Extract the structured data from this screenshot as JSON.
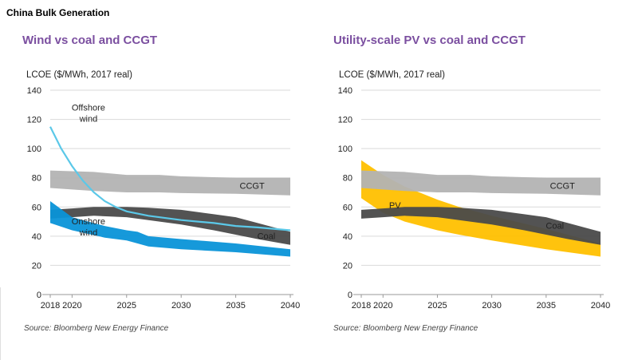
{
  "page_title": "China Bulk Generation",
  "chart_data": [
    {
      "type": "area",
      "title": "Wind vs coal and CCGT",
      "ylabel": "LCOE ($/MWh, 2017 real)",
      "source": "Source: Bloomberg New Energy Finance",
      "ylim": [
        0,
        140
      ],
      "yticks": [
        0,
        20,
        40,
        60,
        80,
        100,
        120,
        140
      ],
      "xlim": [
        2018,
        2040
      ],
      "xticks": [
        2018,
        2020,
        2025,
        2030,
        2035,
        2040
      ],
      "grid": true,
      "colors": {
        "ccgt": "#b3b3b3",
        "coal": "#4a4a4a",
        "onshore": "#0a93d8",
        "offshore": "#5bc8e8"
      },
      "bands": [
        {
          "name": "CCGT",
          "color": "#b3b3b3",
          "x": [
            2018,
            2022,
            2025,
            2028,
            2030,
            2035,
            2040
          ],
          "upper": [
            85,
            84,
            82,
            82,
            81,
            80,
            80
          ],
          "lower": [
            73,
            71,
            70,
            70,
            69.5,
            69,
            68
          ]
        },
        {
          "name": "Coal",
          "color": "#4a4a4a",
          "x": [
            2018,
            2020,
            2022,
            2025,
            2027,
            2030,
            2033,
            2035,
            2037,
            2040
          ],
          "upper": [
            58,
            59,
            60,
            60,
            59.5,
            58,
            55,
            53,
            49,
            43
          ],
          "lower": [
            52,
            53,
            54,
            53,
            51,
            48,
            44,
            41,
            38,
            34
          ]
        },
        {
          "name": "Onshore wind",
          "color": "#0a93d8",
          "x": [
            2018,
            2020,
            2023,
            2025,
            2026,
            2027,
            2030,
            2035,
            2040
          ],
          "upper": [
            64,
            53,
            47,
            44,
            43,
            40,
            38,
            35,
            31
          ],
          "lower": [
            49,
            44,
            39,
            37,
            35,
            33,
            31,
            29,
            26
          ]
        }
      ],
      "lines": [
        {
          "name": "Offshore wind",
          "color": "#5bc8e8",
          "x": [
            2018,
            2019,
            2020,
            2021,
            2022,
            2023,
            2024,
            2025,
            2027,
            2030,
            2033,
            2035,
            2037,
            2040
          ],
          "y": [
            115,
            100,
            88,
            78,
            70,
            64,
            60,
            57,
            54,
            51,
            49,
            47,
            46,
            44
          ]
        }
      ],
      "annotations": [
        {
          "text": "Offshore",
          "x": 2021.5,
          "y": 126
        },
        {
          "text": "wind",
          "x": 2021.5,
          "y": 118.5
        },
        {
          "text": "Onshore",
          "x": 2021.5,
          "y": 48
        },
        {
          "text": "wind",
          "x": 2021.5,
          "y": 40.5
        },
        {
          "text": "CCGT",
          "x": 2036.5,
          "y": 72.5
        },
        {
          "text": "Coal",
          "x": 2037.8,
          "y": 38
        }
      ]
    },
    {
      "type": "area",
      "title": "Utility-scale  PV vs coal and CCGT",
      "ylabel": "LCOE ($/MWh, 2017 real)",
      "source": "Source: Bloomberg New Energy Finance",
      "ylim": [
        0,
        140
      ],
      "yticks": [
        0,
        20,
        40,
        60,
        80,
        100,
        120,
        140
      ],
      "xlim": [
        2018,
        2040
      ],
      "xticks": [
        2018,
        2020,
        2025,
        2030,
        2035,
        2040
      ],
      "grid": true,
      "colors": {
        "ccgt": "#b3b3b3",
        "coal": "#4a4a4a",
        "pv": "#ffc000"
      },
      "bands": [
        {
          "name": "PV",
          "color": "#ffc000",
          "x": [
            2018,
            2020,
            2022,
            2025,
            2027,
            2030,
            2035,
            2040
          ],
          "upper": [
            92,
            82,
            74,
            65,
            60,
            54,
            45,
            35
          ],
          "lower": [
            66,
            56,
            50,
            44,
            41,
            37,
            31,
            26
          ]
        },
        {
          "name": "CCGT",
          "color": "#b3b3b3",
          "x": [
            2018,
            2022,
            2025,
            2028,
            2030,
            2035,
            2040
          ],
          "upper": [
            85,
            84,
            82,
            82,
            81,
            80,
            80
          ],
          "lower": [
            73,
            71,
            70,
            70,
            69.5,
            69,
            68
          ]
        },
        {
          "name": "Coal",
          "color": "#4a4a4a",
          "x": [
            2018,
            2020,
            2022,
            2025,
            2027,
            2030,
            2033,
            2035,
            2037,
            2040
          ],
          "upper": [
            58,
            59,
            60,
            60,
            59.5,
            58,
            55,
            53,
            49,
            43
          ],
          "lower": [
            52,
            53,
            54,
            53,
            51,
            48,
            44,
            41,
            38,
            34
          ]
        }
      ],
      "lines": [],
      "annotations": [
        {
          "text": "PV",
          "x": 2021.1,
          "y": 59
        },
        {
          "text": "CCGT",
          "x": 2036.5,
          "y": 72.5
        },
        {
          "text": "Coal",
          "x": 2035.8,
          "y": 45
        }
      ]
    }
  ]
}
